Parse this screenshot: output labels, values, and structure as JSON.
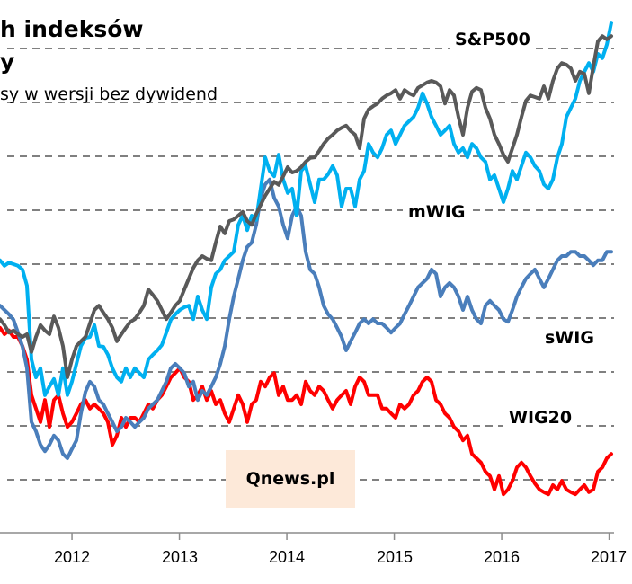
{
  "chart_data": {
    "type": "line",
    "title_lines": [
      "h indeksów",
      "y"
    ],
    "subtitle": "sy w wersji bez dywidend",
    "xlabel": "",
    "ylabel": "",
    "x_ticks": [
      "2012",
      "2013",
      "2014",
      "2015",
      "2016",
      "2017"
    ],
    "x_tick_values": [
      2012,
      2013,
      2014,
      2015,
      2016,
      2017
    ],
    "xlim": [
      2011.33,
      2017.05
    ],
    "ylim": [
      0,
      9.9
    ],
    "y_gridlines": [
      1,
      2,
      3,
      4,
      5,
      6,
      7,
      8,
      9
    ],
    "y_unit_note": "relative index level (no y-axis labels shown)",
    "grid": "horizontal dashed",
    "legend": "inline labels",
    "watermark": "Qnews.pl",
    "x_start": 2011.33,
    "x_step": 0.04184,
    "series": [
      {
        "name": "S&P500",
        "color": "#595959",
        "values": [
          3.98,
          3.87,
          3.73,
          3.77,
          3.7,
          3.65,
          3.7,
          3.37,
          3.65,
          3.87,
          3.77,
          3.7,
          4.03,
          3.82,
          3.48,
          2.9,
          3.23,
          3.48,
          3.57,
          3.65,
          3.9,
          4.15,
          4.23,
          4.1,
          3.98,
          3.82,
          3.57,
          3.7,
          3.82,
          3.93,
          3.98,
          4.1,
          4.23,
          4.53,
          4.43,
          4.32,
          4.15,
          3.98,
          4.1,
          4.23,
          4.32,
          4.53,
          4.73,
          4.93,
          5.07,
          5.15,
          5.1,
          5.07,
          5.4,
          5.7,
          5.57,
          5.8,
          5.83,
          5.9,
          5.97,
          5.8,
          5.73,
          5.93,
          6.1,
          6.27,
          6.4,
          6.53,
          6.47,
          6.63,
          6.8,
          6.7,
          6.73,
          6.8,
          6.9,
          6.97,
          6.98,
          7.1,
          7.23,
          7.33,
          7.4,
          7.48,
          7.53,
          7.57,
          7.47,
          7.4,
          7.15,
          7.7,
          7.87,
          7.93,
          7.98,
          8.07,
          8.13,
          8.17,
          8.23,
          8.07,
          8.23,
          8.17,
          8.13,
          8.27,
          8.32,
          8.37,
          8.4,
          8.37,
          8.3,
          7.98,
          8.23,
          8.13,
          7.73,
          7.4,
          7.9,
          8.2,
          8.27,
          8.23,
          7.9,
          7.7,
          7.4,
          7.23,
          7.03,
          6.9,
          7.15,
          7.4,
          7.73,
          8.03,
          8.13,
          8.1,
          8.07,
          8.3,
          8.07,
          8.4,
          8.63,
          8.73,
          8.7,
          8.63,
          8.4,
          8.57,
          8.53,
          8.17,
          8.67,
          9.13,
          9.23,
          9.17,
          9.23
        ]
      },
      {
        "name": "mWIG",
        "color": "#00B0F0",
        "values": [
          5.07,
          4.97,
          5.03,
          5.0,
          4.97,
          4.9,
          4.6,
          3.23,
          2.9,
          3.07,
          2.57,
          2.73,
          2.87,
          2.57,
          3.07,
          2.57,
          2.82,
          3.15,
          3.48,
          3.63,
          3.65,
          3.87,
          3.48,
          3.47,
          3.32,
          3.07,
          2.9,
          2.82,
          3.07,
          2.9,
          3.07,
          2.98,
          2.9,
          3.23,
          3.32,
          3.4,
          3.5,
          3.73,
          3.97,
          4.07,
          4.15,
          4.2,
          4.23,
          3.98,
          4.4,
          4.15,
          3.98,
          4.57,
          4.82,
          4.9,
          5.07,
          5.15,
          5.23,
          5.73,
          5.9,
          5.63,
          5.9,
          5.82,
          6.4,
          6.98,
          6.73,
          6.63,
          7.03,
          6.57,
          6.32,
          6.4,
          5.9,
          6.73,
          6.82,
          6.48,
          6.15,
          6.57,
          6.57,
          6.67,
          6.82,
          6.65,
          6.07,
          6.4,
          6.4,
          6.07,
          6.57,
          6.73,
          7.23,
          7.07,
          6.98,
          7.15,
          7.4,
          7.48,
          7.23,
          7.4,
          7.57,
          7.65,
          7.73,
          7.9,
          8.17,
          7.98,
          7.73,
          7.57,
          7.4,
          7.48,
          7.57,
          7.23,
          7.07,
          7.15,
          6.98,
          7.23,
          7.15,
          6.98,
          6.9,
          6.57,
          6.65,
          6.4,
          6.15,
          6.4,
          6.73,
          6.57,
          6.82,
          7.07,
          6.98,
          6.82,
          6.73,
          6.48,
          6.4,
          6.57,
          6.98,
          7.23,
          7.73,
          7.9,
          8.07,
          8.4,
          8.57,
          8.73,
          8.57,
          8.9,
          8.82,
          9.07,
          9.48
        ]
      },
      {
        "name": "sWIG",
        "color": "#4A7EBB",
        "values": [
          4.23,
          4.15,
          4.07,
          3.97,
          3.73,
          3.47,
          3.07,
          2.07,
          1.9,
          1.65,
          1.53,
          1.65,
          1.82,
          1.73,
          1.48,
          1.4,
          1.57,
          1.73,
          2.23,
          2.63,
          2.82,
          2.73,
          2.48,
          2.4,
          2.23,
          2.07,
          1.9,
          1.98,
          2.15,
          2.07,
          1.98,
          2.07,
          2.15,
          2.32,
          2.4,
          2.48,
          2.65,
          2.82,
          3.07,
          3.15,
          3.07,
          2.98,
          2.73,
          2.82,
          2.48,
          2.65,
          2.57,
          2.73,
          2.9,
          3.15,
          3.48,
          3.98,
          4.4,
          4.73,
          5.07,
          5.32,
          5.4,
          5.73,
          6.23,
          6.48,
          6.57,
          6.23,
          6.07,
          5.73,
          5.48,
          5.9,
          6.07,
          5.9,
          5.23,
          4.9,
          4.82,
          4.57,
          4.23,
          4.07,
          3.98,
          3.82,
          3.65,
          3.4,
          3.57,
          3.73,
          3.9,
          3.98,
          3.9,
          3.98,
          3.9,
          3.9,
          3.82,
          3.73,
          3.82,
          3.9,
          4.07,
          4.23,
          4.4,
          4.57,
          4.65,
          4.73,
          4.9,
          4.82,
          4.4,
          4.57,
          4.65,
          4.57,
          4.4,
          4.15,
          4.4,
          4.15,
          3.98,
          3.9,
          4.23,
          4.32,
          4.23,
          4.15,
          3.98,
          3.93,
          4.15,
          4.4,
          4.57,
          4.73,
          4.82,
          4.9,
          4.73,
          4.57,
          4.73,
          4.9,
          5.07,
          5.15,
          5.15,
          5.23,
          5.23,
          5.15,
          5.15,
          5.07,
          4.98,
          5.07,
          5.07,
          5.23,
          5.23
        ]
      },
      {
        "name": "WIG20",
        "color": "#FF0000",
        "values": [
          3.82,
          3.7,
          3.77,
          3.65,
          3.65,
          3.48,
          3.23,
          2.57,
          2.32,
          2.07,
          2.48,
          1.98,
          2.48,
          2.57,
          2.23,
          1.98,
          2.07,
          2.23,
          2.4,
          2.48,
          2.32,
          2.4,
          2.32,
          2.23,
          2.07,
          1.65,
          1.82,
          2.15,
          1.98,
          2.15,
          2.15,
          2.07,
          2.23,
          2.4,
          2.32,
          2.48,
          2.57,
          2.73,
          2.9,
          2.98,
          3.07,
          2.9,
          2.82,
          2.48,
          2.57,
          2.73,
          2.48,
          2.65,
          2.4,
          2.48,
          2.23,
          2.07,
          2.32,
          2.57,
          2.4,
          2.07,
          2.4,
          2.48,
          2.82,
          2.73,
          2.9,
          2.98,
          2.57,
          2.73,
          2.48,
          2.48,
          2.57,
          2.4,
          2.82,
          2.65,
          2.57,
          2.73,
          2.65,
          2.48,
          2.32,
          2.48,
          2.57,
          2.65,
          2.4,
          2.73,
          2.9,
          2.82,
          2.57,
          2.57,
          2.57,
          2.32,
          2.32,
          2.23,
          2.15,
          2.4,
          2.32,
          2.4,
          2.57,
          2.65,
          2.82,
          2.9,
          2.82,
          2.48,
          2.4,
          2.23,
          2.15,
          1.98,
          1.9,
          1.73,
          1.82,
          1.48,
          1.4,
          1.32,
          1.15,
          1.07,
          0.82,
          1.07,
          0.73,
          0.82,
          0.98,
          1.23,
          1.32,
          1.23,
          1.07,
          0.93,
          0.82,
          0.77,
          0.73,
          0.9,
          0.82,
          0.98,
          0.82,
          0.77,
          0.73,
          0.82,
          0.9,
          0.77,
          0.82,
          1.15,
          1.23,
          1.4,
          1.48
        ]
      }
    ]
  },
  "labels": {
    "title_line1": "h indeksów",
    "title_line2": "y",
    "subtitle": "sy w wersji bez dywidend",
    "sp500": "S&P500",
    "mwig": "mWIG",
    "swig": "sWIG",
    "wig20": "WIG20",
    "watermark": "Qnews.pl",
    "ticks": [
      "2012",
      "2013",
      "2014",
      "2015",
      "2016",
      "2017"
    ]
  }
}
